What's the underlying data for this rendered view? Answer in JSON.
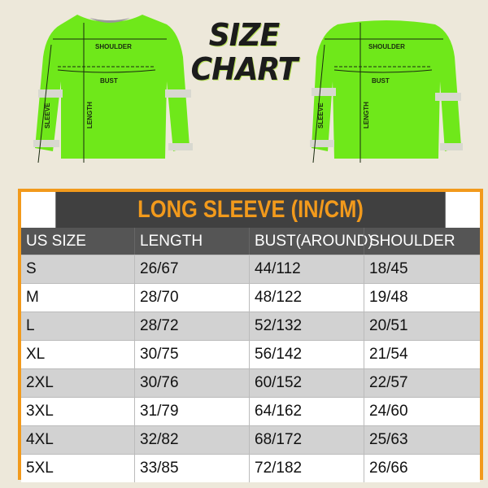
{
  "title_line1": "SIZE",
  "title_line2": "CHART",
  "diagram_labels": {
    "shoulder": "SHOULDER",
    "bust": "BUST",
    "sleeve": "SLEEVE",
    "length": "LENGTH"
  },
  "colors": {
    "shirt": "#6fe81a",
    "accent": "#f29a1c",
    "header": "#404040"
  },
  "table": {
    "title": "LONG SLEEVE (IN/CM)",
    "headers": [
      "US SIZE",
      "LENGTH",
      "BUST(AROUND)",
      "SHOULDER"
    ],
    "rows": [
      [
        "S",
        "26/67",
        "44/112",
        "18/45"
      ],
      [
        "M",
        "28/70",
        "48/122",
        "19/48"
      ],
      [
        "L",
        "28/72",
        "52/132",
        "20/51"
      ],
      [
        "XL",
        "30/75",
        "56/142",
        "21/54"
      ],
      [
        "2XL",
        "30/76",
        "60/152",
        "22/57"
      ],
      [
        "3XL",
        "31/79",
        "64/162",
        "24/60"
      ],
      [
        "4XL",
        "32/82",
        "68/172",
        "25/63"
      ],
      [
        "5XL",
        "33/85",
        "72/182",
        "26/66"
      ]
    ]
  }
}
